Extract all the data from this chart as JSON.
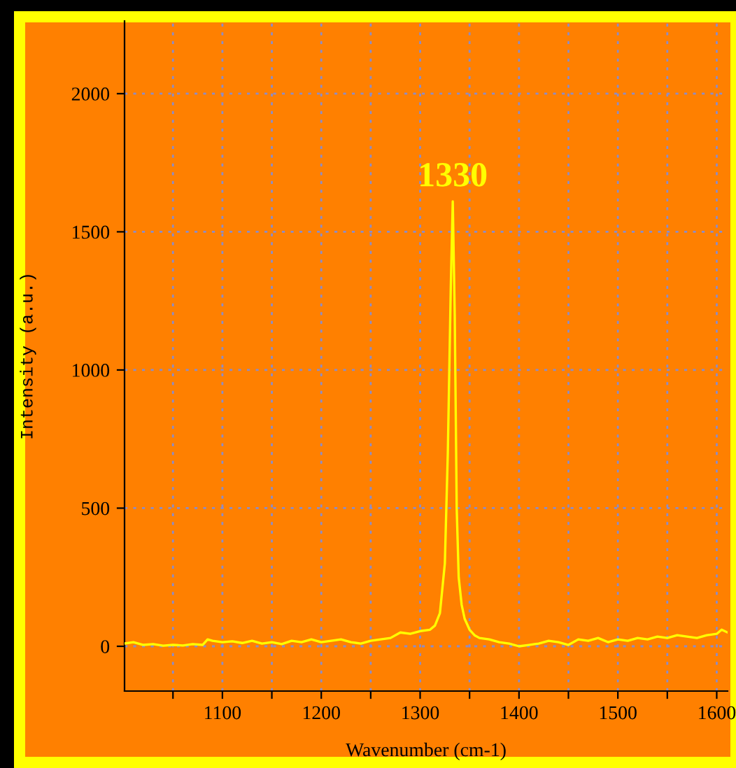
{
  "chart_data": {
    "type": "line",
    "xlabel": "Wavenumber (cm-1)",
    "ylabel": "Intensity (a.u.)",
    "annotations": [
      {
        "text": "1330",
        "x": 1333,
        "y": 1610
      }
    ],
    "x": [
      1001,
      1010,
      1020,
      1030,
      1040,
      1050,
      1060,
      1070,
      1080,
      1085,
      1090,
      1100,
      1110,
      1120,
      1130,
      1140,
      1150,
      1160,
      1170,
      1180,
      1190,
      1200,
      1210,
      1220,
      1230,
      1240,
      1250,
      1260,
      1270,
      1280,
      1290,
      1300,
      1310,
      1315,
      1320,
      1325,
      1328,
      1331,
      1333,
      1335,
      1337,
      1339,
      1342,
      1345,
      1350,
      1355,
      1360,
      1370,
      1380,
      1390,
      1400,
      1410,
      1420,
      1430,
      1440,
      1450,
      1460,
      1470,
      1480,
      1490,
      1500,
      1510,
      1520,
      1530,
      1540,
      1550,
      1560,
      1570,
      1580,
      1590,
      1600,
      1605,
      1611
    ],
    "series": [
      {
        "color": "#ffff00",
        "values": [
          10,
          15,
          5,
          8,
          2,
          5,
          3,
          8,
          5,
          25,
          20,
          15,
          18,
          12,
          20,
          10,
          15,
          8,
          20,
          15,
          25,
          15,
          20,
          25,
          15,
          10,
          20,
          25,
          30,
          50,
          45,
          55,
          60,
          75,
          120,
          300,
          700,
          1300,
          1610,
          1200,
          500,
          250,
          150,
          100,
          60,
          40,
          30,
          25,
          15,
          10,
          0,
          5,
          10,
          20,
          15,
          5,
          25,
          20,
          30,
          15,
          25,
          20,
          30,
          25,
          35,
          30,
          40,
          35,
          30,
          40,
          45,
          60,
          50
        ]
      }
    ],
    "xlim": [
      1001,
      1611
    ],
    "ylim": [
      -162,
      2263
    ],
    "xticks": [
      {
        "value": 1050,
        "label": null
      },
      1100,
      {
        "value": 1150,
        "label": null
      },
      1200,
      {
        "value": 1250,
        "label": null
      },
      1300,
      {
        "value": 1350,
        "label": null
      },
      1400,
      {
        "value": 1450,
        "label": null
      },
      1500,
      {
        "value": 1550,
        "label": null
      },
      1600
    ],
    "yticks": [
      0,
      500,
      1000,
      1500,
      2000
    ],
    "grid": true,
    "legend": false,
    "marker": "none",
    "line_style": "solid"
  }
}
